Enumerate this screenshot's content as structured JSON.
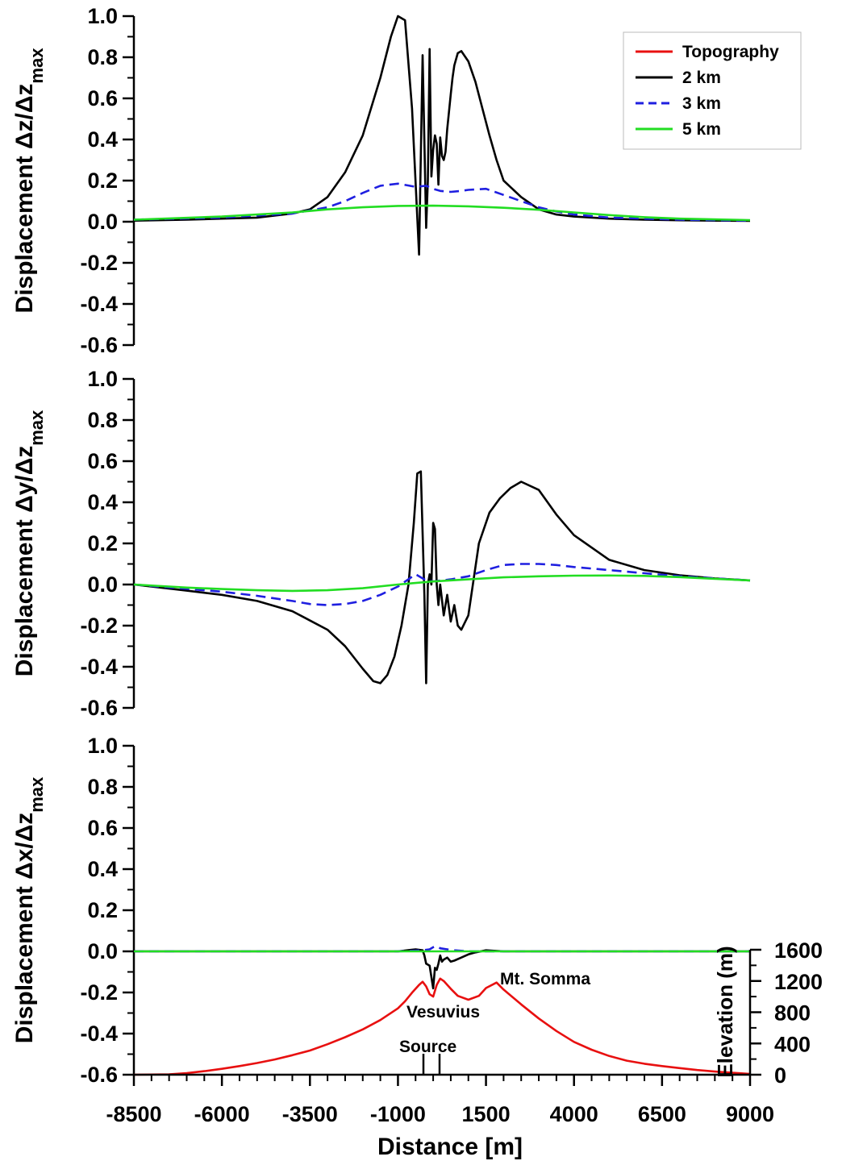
{
  "chart_data": [
    {
      "type": "line",
      "ylabel": "Displacement Δz/Δz",
      "ylabel_sub": "max",
      "ylim": [
        -0.6,
        1.0
      ],
      "yticks": [
        "1.0",
        "0.8",
        "0.6",
        "0.4",
        "0.2",
        "0.0",
        "-0.2",
        "-0.4",
        "-0.6"
      ],
      "xlim": [
        -8500,
        9000
      ],
      "legend_position": "top-right",
      "legend": [
        "Topography",
        "2 km",
        "3 km",
        "5 km"
      ],
      "series": [
        {
          "name": "2 km",
          "color": "#000000",
          "dash": "solid",
          "x": [
            -8500,
            -7000,
            -6000,
            -5000,
            -4000,
            -3500,
            -3000,
            -2500,
            -2000,
            -1500,
            -1200,
            -1000,
            -800,
            -600,
            -400,
            -300,
            -200,
            -150,
            -100,
            -50,
            0,
            50,
            100,
            150,
            200,
            250,
            300,
            350,
            400,
            500,
            550,
            600,
            700,
            800,
            1000,
            1200,
            1400,
            1600,
            1800,
            2000,
            2500,
            3000,
            3500,
            4000,
            5000,
            6000,
            7000,
            8000,
            9000
          ],
          "y": [
            0.005,
            0.01,
            0.015,
            0.02,
            0.04,
            0.06,
            0.12,
            0.24,
            0.42,
            0.7,
            0.9,
            1.0,
            0.98,
            0.55,
            -0.16,
            0.81,
            -0.03,
            0.2,
            0.84,
            0.22,
            0.35,
            0.42,
            0.38,
            0.18,
            0.41,
            0.32,
            0.3,
            0.34,
            0.45,
            0.62,
            0.7,
            0.76,
            0.82,
            0.83,
            0.78,
            0.68,
            0.55,
            0.42,
            0.3,
            0.2,
            0.12,
            0.06,
            0.035,
            0.025,
            0.015,
            0.01,
            0.007,
            0.005,
            0.004
          ]
        },
        {
          "name": "3 km",
          "color": "#1f1fe0",
          "dash": "dashed",
          "x": [
            -8500,
            -6000,
            -4000,
            -3000,
            -2500,
            -2000,
            -1500,
            -1000,
            -500,
            -200,
            0,
            200,
            500,
            800,
            1000,
            1500,
            2000,
            2500,
            3000,
            3500,
            4000,
            5000,
            7000,
            9000
          ],
          "y": [
            0.01,
            0.02,
            0.04,
            0.07,
            0.1,
            0.14,
            0.175,
            0.185,
            0.17,
            0.175,
            0.16,
            0.15,
            0.145,
            0.15,
            0.155,
            0.16,
            0.13,
            0.1,
            0.07,
            0.05,
            0.035,
            0.02,
            0.01,
            0.005
          ]
        },
        {
          "name": "5 km",
          "color": "#22dd22",
          "dash": "solid",
          "x": [
            -8500,
            -6000,
            -4000,
            -3000,
            -2000,
            -1000,
            0,
            1000,
            2000,
            3000,
            4000,
            5000,
            6000,
            7000,
            9000
          ],
          "y": [
            0.01,
            0.025,
            0.045,
            0.06,
            0.07,
            0.077,
            0.078,
            0.075,
            0.068,
            0.058,
            0.045,
            0.032,
            0.022,
            0.015,
            0.008
          ]
        }
      ]
    },
    {
      "type": "line",
      "ylabel": "Displacement Δy/Δz",
      "ylabel_sub": "max",
      "ylim": [
        -0.6,
        1.0
      ],
      "yticks": [
        "1.0",
        "0.8",
        "0.6",
        "0.4",
        "0.2",
        "0.0",
        "-0.2",
        "-0.4",
        "-0.6"
      ],
      "xlim": [
        -8500,
        9000
      ],
      "series": [
        {
          "name": "2 km",
          "color": "#000000",
          "dash": "solid",
          "x": [
            -8500,
            -7000,
            -6000,
            -5000,
            -4000,
            -3000,
            -2500,
            -2000,
            -1700,
            -1500,
            -1300,
            -1100,
            -900,
            -700,
            -550,
            -450,
            -350,
            -250,
            -200,
            -150,
            -100,
            -50,
            0,
            50,
            100,
            150,
            200,
            300,
            400,
            500,
            600,
            700,
            800,
            1000,
            1300,
            1600,
            1900,
            2200,
            2500,
            3000,
            3500,
            4000,
            5000,
            6000,
            7000,
            8000,
            9000
          ],
          "y": [
            0,
            -0.03,
            -0.05,
            -0.08,
            -0.13,
            -0.22,
            -0.3,
            -0.41,
            -0.47,
            -0.48,
            -0.44,
            -0.35,
            -0.2,
            0,
            0.3,
            0.54,
            0.55,
            -0.05,
            -0.48,
            0.0,
            0.05,
            0.0,
            0.3,
            0.27,
            0.0,
            -0.1,
            0.0,
            -0.15,
            -0.05,
            -0.18,
            -0.1,
            -0.2,
            -0.22,
            -0.15,
            0.2,
            0.35,
            0.42,
            0.47,
            0.5,
            0.46,
            0.34,
            0.24,
            0.12,
            0.07,
            0.045,
            0.03,
            0.02
          ]
        },
        {
          "name": "3 km",
          "color": "#1f1fe0",
          "dash": "dashed",
          "x": [
            -8500,
            -6000,
            -5000,
            -4000,
            -3500,
            -3000,
            -2500,
            -2000,
            -1500,
            -1000,
            -500,
            -200,
            0,
            500,
            1000,
            1500,
            2000,
            2500,
            3000,
            3500,
            4000,
            5000,
            6000,
            7000,
            8000,
            9000
          ],
          "y": [
            0,
            -0.035,
            -0.055,
            -0.08,
            -0.095,
            -0.1,
            -0.095,
            -0.08,
            -0.05,
            -0.01,
            0.05,
            0.02,
            0.015,
            0.025,
            0.04,
            0.07,
            0.095,
            0.1,
            0.1,
            0.095,
            0.085,
            0.07,
            0.055,
            0.04,
            0.03,
            0.02
          ]
        },
        {
          "name": "5 km",
          "color": "#22dd22",
          "dash": "solid",
          "x": [
            -8500,
            -7000,
            -6000,
            -5000,
            -4000,
            -3000,
            -2000,
            -1000,
            0,
            1000,
            2000,
            3000,
            4000,
            5000,
            6000,
            7000,
            8000,
            9000
          ],
          "y": [
            0,
            -0.015,
            -0.022,
            -0.028,
            -0.031,
            -0.028,
            -0.018,
            0,
            0.015,
            0.025,
            0.035,
            0.04,
            0.043,
            0.044,
            0.042,
            0.036,
            0.028,
            0.02
          ]
        }
      ]
    },
    {
      "type": "line",
      "ylabel": "Displacement Δx/Δz",
      "ylabel_sub": "max",
      "xlabel": "Distance  [m]",
      "ylim": [
        -0.6,
        1.0
      ],
      "yticks": [
        "1.0",
        "0.8",
        "0.6",
        "0.4",
        "0.2",
        "0.0",
        "-0.2",
        "-0.4",
        "-0.6"
      ],
      "xlim": [
        -8500,
        9000
      ],
      "xticks": [
        "-8500",
        "-6000",
        "-3500",
        "-1000",
        "1500",
        "4000",
        "6500",
        "9000"
      ],
      "y2label": "Elevation (m)",
      "y2lim": [
        0,
        1600
      ],
      "y2ticks": [
        "1600",
        "1200",
        "800",
        "400",
        "0"
      ],
      "annotations": {
        "somma": "Mt. Somma",
        "vesuvius": "Vesuvius",
        "source": "Source"
      },
      "series": [
        {
          "name": "2 km",
          "color": "#000000",
          "dash": "solid",
          "x": [
            -8500,
            -2000,
            -1000,
            -500,
            -300,
            -250,
            -200,
            -100,
            0,
            50,
            100,
            150,
            200,
            250,
            300,
            400,
            500,
            600,
            800,
            1000,
            1200,
            1500,
            2000,
            3000,
            9000
          ],
          "y": [
            0,
            0,
            0,
            0.01,
            0.005,
            -0.02,
            -0.06,
            -0.07,
            -0.18,
            -0.08,
            -0.09,
            -0.06,
            -0.02,
            -0.05,
            -0.04,
            -0.03,
            -0.05,
            -0.045,
            -0.03,
            -0.015,
            -0.005,
            0.005,
            0,
            0,
            0
          ]
        },
        {
          "name": "3 km",
          "color": "#1f1fe0",
          "dash": "dashed",
          "x": [
            -8500,
            -1000,
            -300,
            -100,
            0,
            100,
            200,
            400,
            600,
            1000,
            1500,
            2000,
            9000
          ],
          "y": [
            0,
            0,
            0.005,
            0.01,
            0.02,
            0.025,
            0.015,
            0.01,
            0.005,
            0,
            0,
            0,
            0
          ]
        },
        {
          "name": "5 km",
          "color": "#22dd22",
          "dash": "solid",
          "x": [
            -8500,
            9000
          ],
          "y": [
            0,
            0
          ]
        },
        {
          "name": "Topography",
          "color": "#e81010",
          "dash": "solid",
          "axis": "right",
          "x": [
            -8500,
            -7500,
            -7000,
            -6500,
            -6000,
            -5500,
            -5000,
            -4500,
            -4000,
            -3500,
            -3000,
            -2500,
            -2000,
            -1500,
            -1000,
            -800,
            -600,
            -400,
            -300,
            -200,
            -100,
            0,
            100,
            200,
            300,
            500,
            700,
            1000,
            1300,
            1500,
            1800,
            2000,
            2500,
            3000,
            3500,
            4000,
            4500,
            5000,
            5500,
            6000,
            6500,
            7000,
            7500,
            8000,
            8500,
            9000
          ],
          "y": [
            0,
            5,
            20,
            45,
            75,
            110,
            150,
            195,
            250,
            310,
            390,
            480,
            580,
            700,
            850,
            940,
            1050,
            1150,
            1190,
            1130,
            1030,
            1000,
            1150,
            1230,
            1200,
            1100,
            1010,
            960,
            1010,
            1110,
            1180,
            1090,
            900,
            720,
            560,
            420,
            320,
            240,
            180,
            140,
            110,
            85,
            60,
            40,
            25,
            10
          ]
        }
      ]
    }
  ],
  "colors": {
    "topography": "#e81010",
    "km2": "#000000",
    "km3": "#1f1fe0",
    "km5": "#22dd22"
  }
}
